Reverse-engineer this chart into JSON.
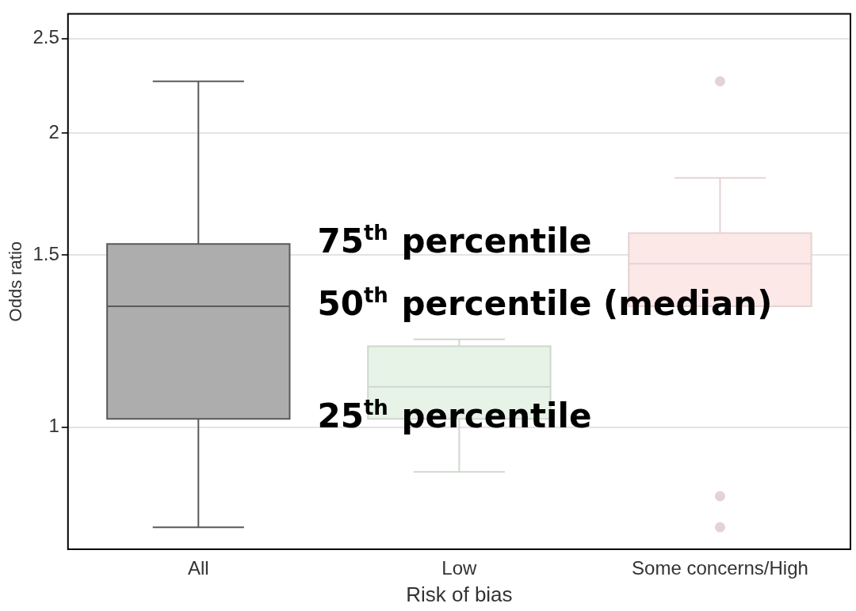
{
  "chart_data": {
    "type": "box",
    "xlabel": "Risk of bias",
    "ylabel": "Odds ratio",
    "categories": [
      "All",
      "Low",
      "Some concerns/High"
    ],
    "colors": [
      "#adadad",
      "#e8f3e8",
      "#fde8e8"
    ],
    "boxes": [
      {
        "low": 0.79,
        "q1": 1.02,
        "median": 1.33,
        "q3": 1.54,
        "high": 2.26
      },
      {
        "low": 0.9,
        "q1": 1.02,
        "median": 1.1,
        "q3": 1.21,
        "high": 1.23
      },
      {
        "low": 1.33,
        "q1": 1.33,
        "median": 1.47,
        "q3": 1.58,
        "high": 1.8,
        "outliers": [
          2.26,
          0.85,
          0.79
        ]
      }
    ],
    "log": "y",
    "ylim": [
      0.75,
      2.65
    ],
    "yticks": [
      1,
      1.5,
      2,
      2.5
    ],
    "grid": "y",
    "legend": false,
    "annotations": [
      "75$^{th}$ percentile",
      "50$^{th}$ percentile (median)",
      "25$^{th}$ percentile"
    ]
  }
}
